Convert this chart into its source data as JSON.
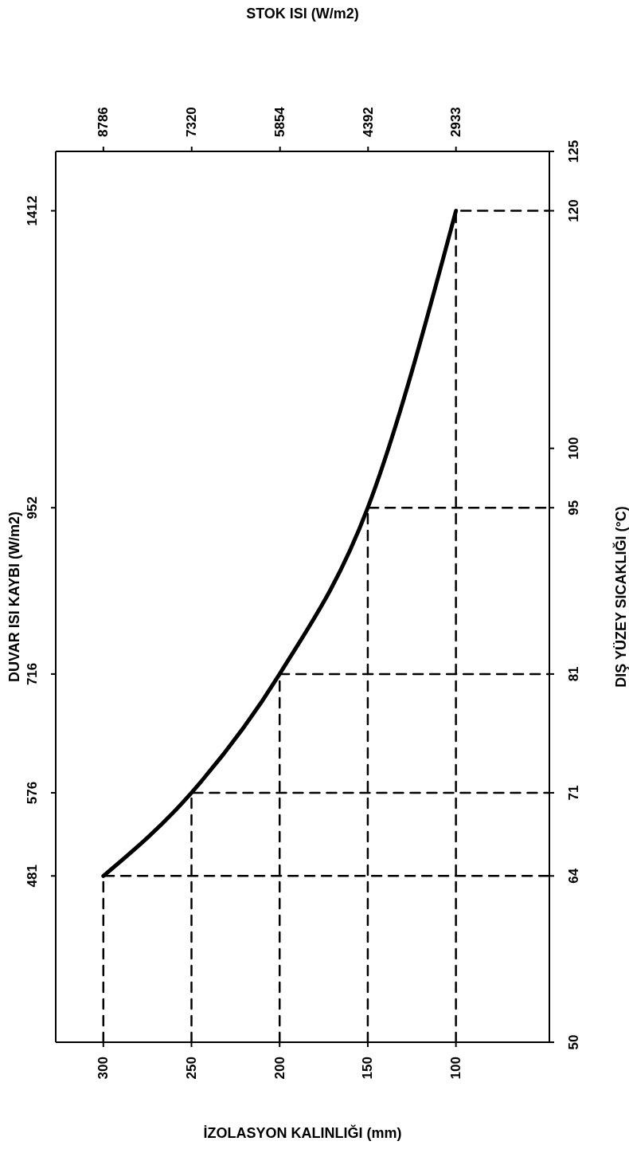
{
  "chart_data": {
    "type": "line",
    "xlabel": "İZOLASYON KALINLIĞI (mm)",
    "ylabel": "DIŞ YÜZEY SICAKLIĞI (°C)",
    "x2label": "STOK ISI (W/m2)",
    "y2label": "DUVAR ISI KAYBI (W/m2)",
    "xlim": [
      327,
      47
    ],
    "xticks": [
      300,
      250,
      200,
      150,
      100
    ],
    "x2lim": [
      9577,
      1382
    ],
    "x2ticks": [
      8786,
      7320,
      5854,
      4392,
      2933
    ],
    "ylim": [
      50,
      125
    ],
    "yticks": [
      50,
      64,
      71,
      81,
      95,
      100,
      120,
      125
    ],
    "annotations": [
      "481",
      "576",
      "716",
      "952",
      "1412"
    ],
    "line_style": "solid",
    "series": [
      {
        "color": "#000000",
        "x": [
          300,
          250,
          200,
          150,
          100
        ],
        "values": [
          64,
          71,
          81,
          95,
          120
        ]
      },
      {
        "color": "#000000",
        "line_style": "dashed",
        "x": [
          300,
          300,
          47
        ],
        "values": [
          50,
          64,
          64
        ]
      },
      {
        "color": "#000000",
        "line_style": "dashed",
        "x": [
          250,
          250,
          47
        ],
        "values": [
          50,
          71,
          71
        ]
      },
      {
        "color": "#000000",
        "line_style": "dashed",
        "x": [
          200,
          200,
          47
        ],
        "values": [
          50,
          81,
          81
        ]
      },
      {
        "color": "#000000",
        "line_style": "dashed",
        "x": [
          150,
          150,
          47
        ],
        "values": [
          50,
          95,
          95
        ]
      },
      {
        "color": "#000000",
        "line_style": "dashed",
        "x": [
          100,
          100,
          47
        ],
        "values": [
          50,
          120,
          120
        ]
      }
    ]
  }
}
